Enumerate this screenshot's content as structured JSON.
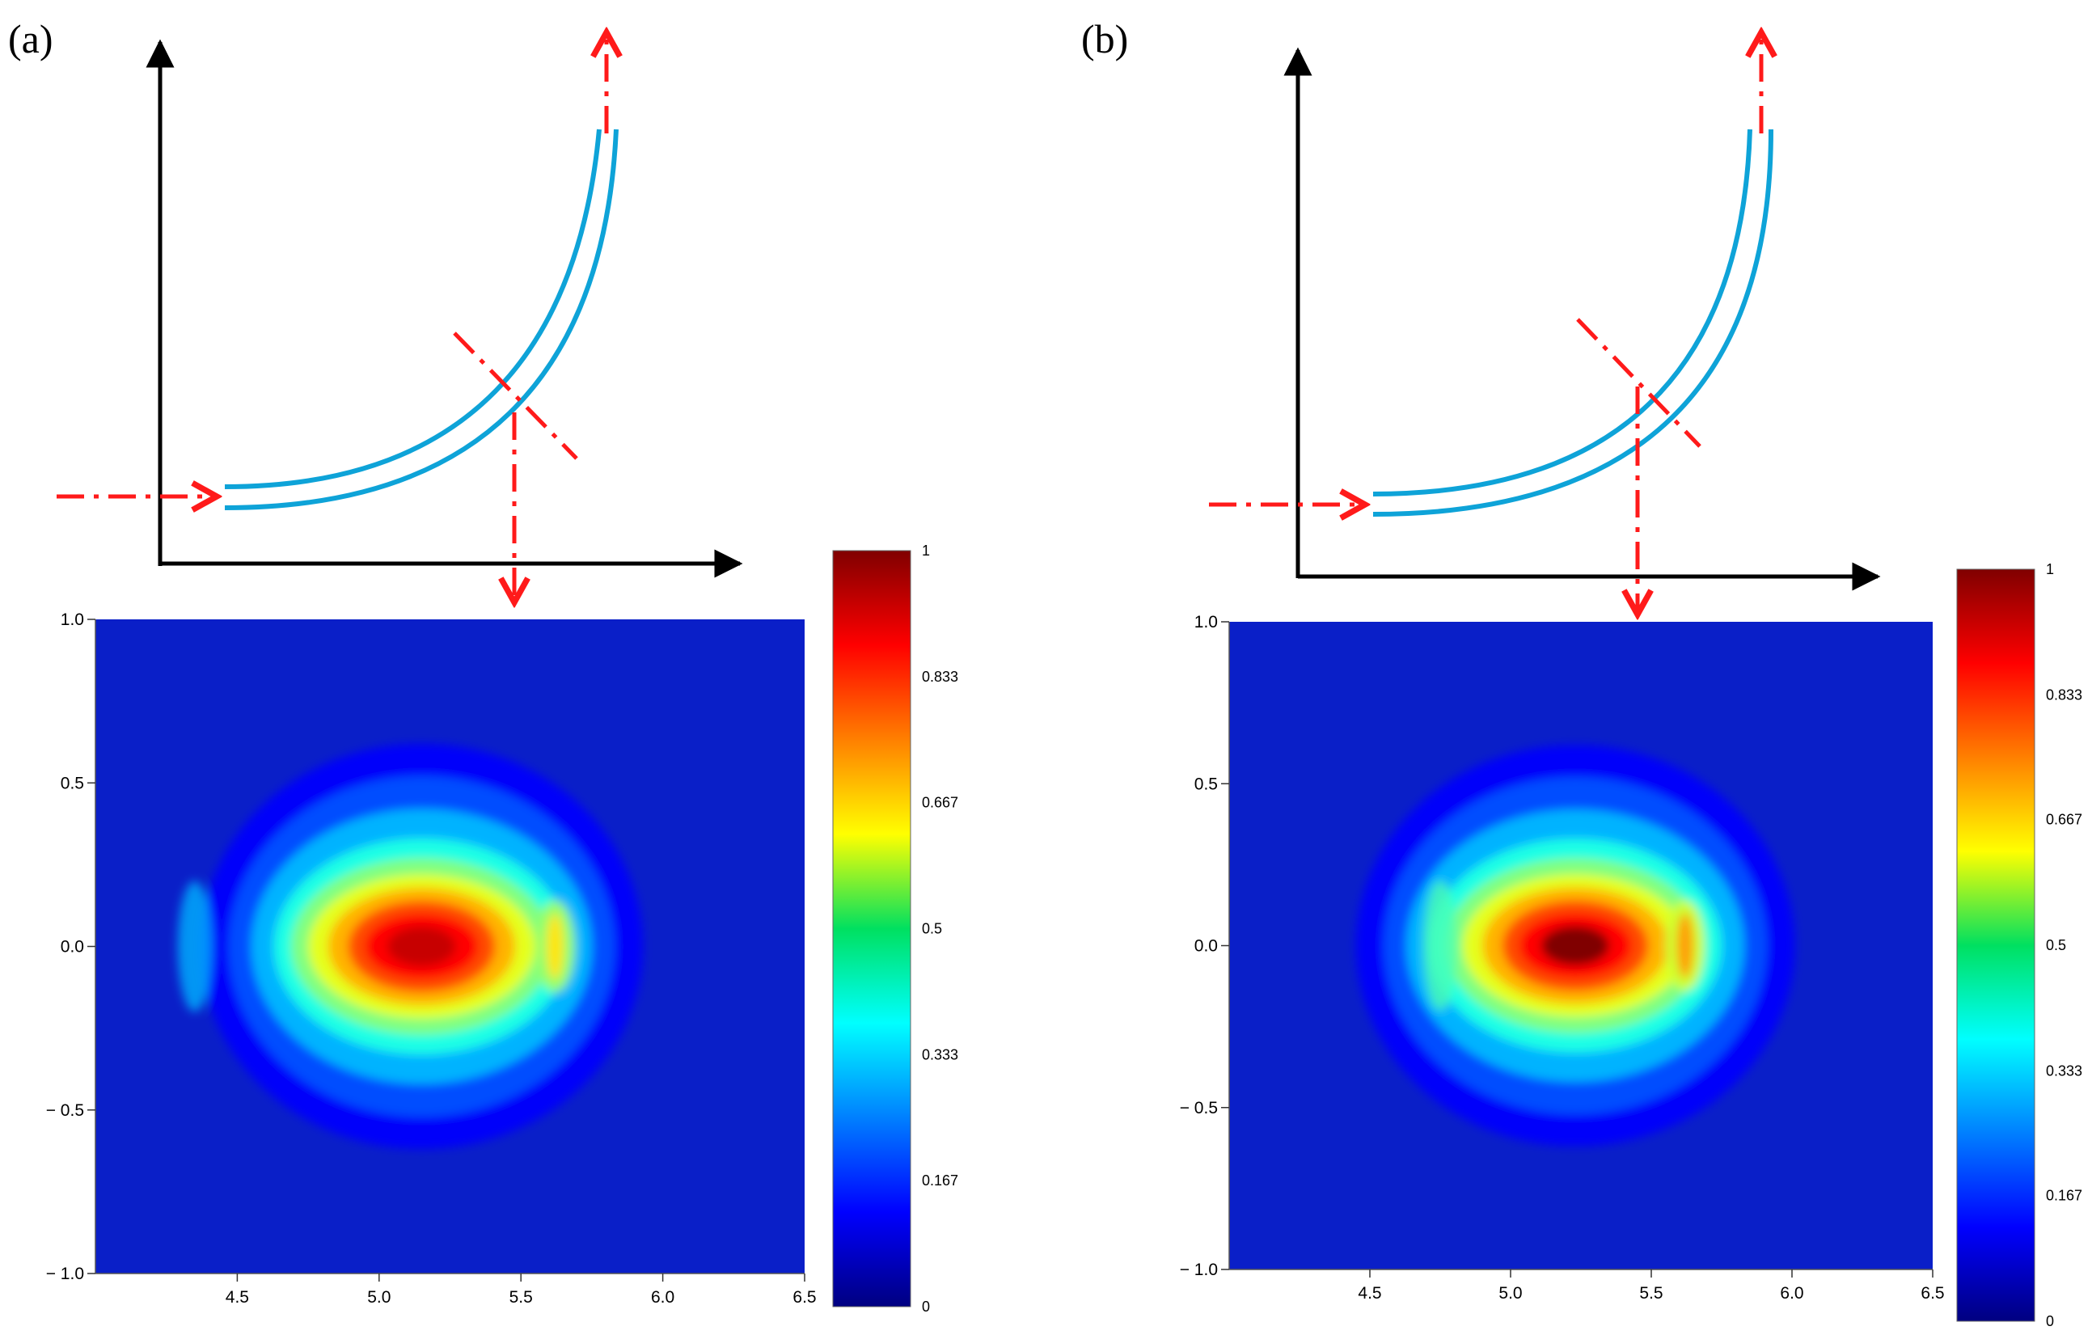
{
  "panels": [
    {
      "label": "(a)",
      "diagram": {
        "description_icons": [
          "input-arrow",
          "bent-waveguide",
          "output-arrow",
          "cross-section-marker",
          "projection-arrow"
        ]
      },
      "chart_data": {
        "type": "heatmap",
        "xlim": [
          4.0,
          6.5
        ],
        "ylim": [
          -1.0,
          1.0
        ],
        "x_ticks": [
          4.5,
          5.0,
          5.5,
          6.0,
          6.5
        ],
        "x_tick_labels": [
          "4.5",
          "5.0",
          "5.5",
          "6.0",
          "6.5"
        ],
        "y_ticks": [
          1.0,
          0.5,
          0.0,
          -0.5,
          -1.0
        ],
        "y_tick_labels": [
          "1.0",
          "0.5",
          "0.0",
          "− 0.5",
          "− 1.0"
        ],
        "colorbar": {
          "range": [
            0,
            1
          ],
          "ticks": [
            1,
            0.833,
            0.667,
            0.5,
            0.333,
            0.167,
            0
          ],
          "tick_labels": [
            "1",
            "0.833",
            "0.667",
            "0.5",
            "0.333",
            "0.167",
            "0"
          ],
          "colormap": "jet"
        },
        "mode_field": {
          "main_lobe": {
            "center_x": 5.15,
            "center_y": 0.0,
            "peak": 0.93
          },
          "side_lobe": {
            "center_x": 5.62,
            "center_y": 0.0,
            "peak": 0.65
          },
          "faint_lobe": {
            "center_x": 4.35,
            "center_y": 0.0,
            "peak": 0.3
          }
        }
      }
    },
    {
      "label": "(b)",
      "diagram": {
        "description_icons": [
          "input-arrow",
          "bent-waveguide",
          "output-arrow",
          "cross-section-marker",
          "projection-arrow"
        ]
      },
      "chart_data": {
        "type": "heatmap",
        "xlim": [
          4.0,
          6.5
        ],
        "ylim": [
          -1.0,
          1.0
        ],
        "x_ticks": [
          4.5,
          5.0,
          5.5,
          6.0,
          6.5
        ],
        "x_tick_labels": [
          "4.5",
          "5.0",
          "5.5",
          "6.0",
          "6.5"
        ],
        "y_ticks": [
          1.0,
          0.5,
          0.0,
          -0.5,
          -1.0
        ],
        "y_tick_labels": [
          "1.0",
          "0.5",
          "0.0",
          "− 0.5",
          "− 1.0"
        ],
        "colorbar": {
          "range": [
            0,
            1
          ],
          "ticks": [
            1,
            0.833,
            0.667,
            0.5,
            0.333,
            0.167,
            0
          ],
          "tick_labels": [
            "1",
            "0.833",
            "0.667",
            "0.5",
            "0.333",
            "0.167",
            "0"
          ],
          "colormap": "jet"
        },
        "mode_field": {
          "main_lobe": {
            "center_x": 5.23,
            "center_y": 0.0,
            "peak": 1.0
          },
          "side_lobe": {
            "center_x": 5.62,
            "center_y": 0.0,
            "peak": 0.72
          },
          "faint_lobe": {
            "center_x": 4.75,
            "center_y": 0.0,
            "peak": 0.45
          }
        }
      }
    }
  ],
  "colors": {
    "waveguide": "#0ea3d8",
    "arrow": "#ff1a1a",
    "axis": "#000000"
  }
}
